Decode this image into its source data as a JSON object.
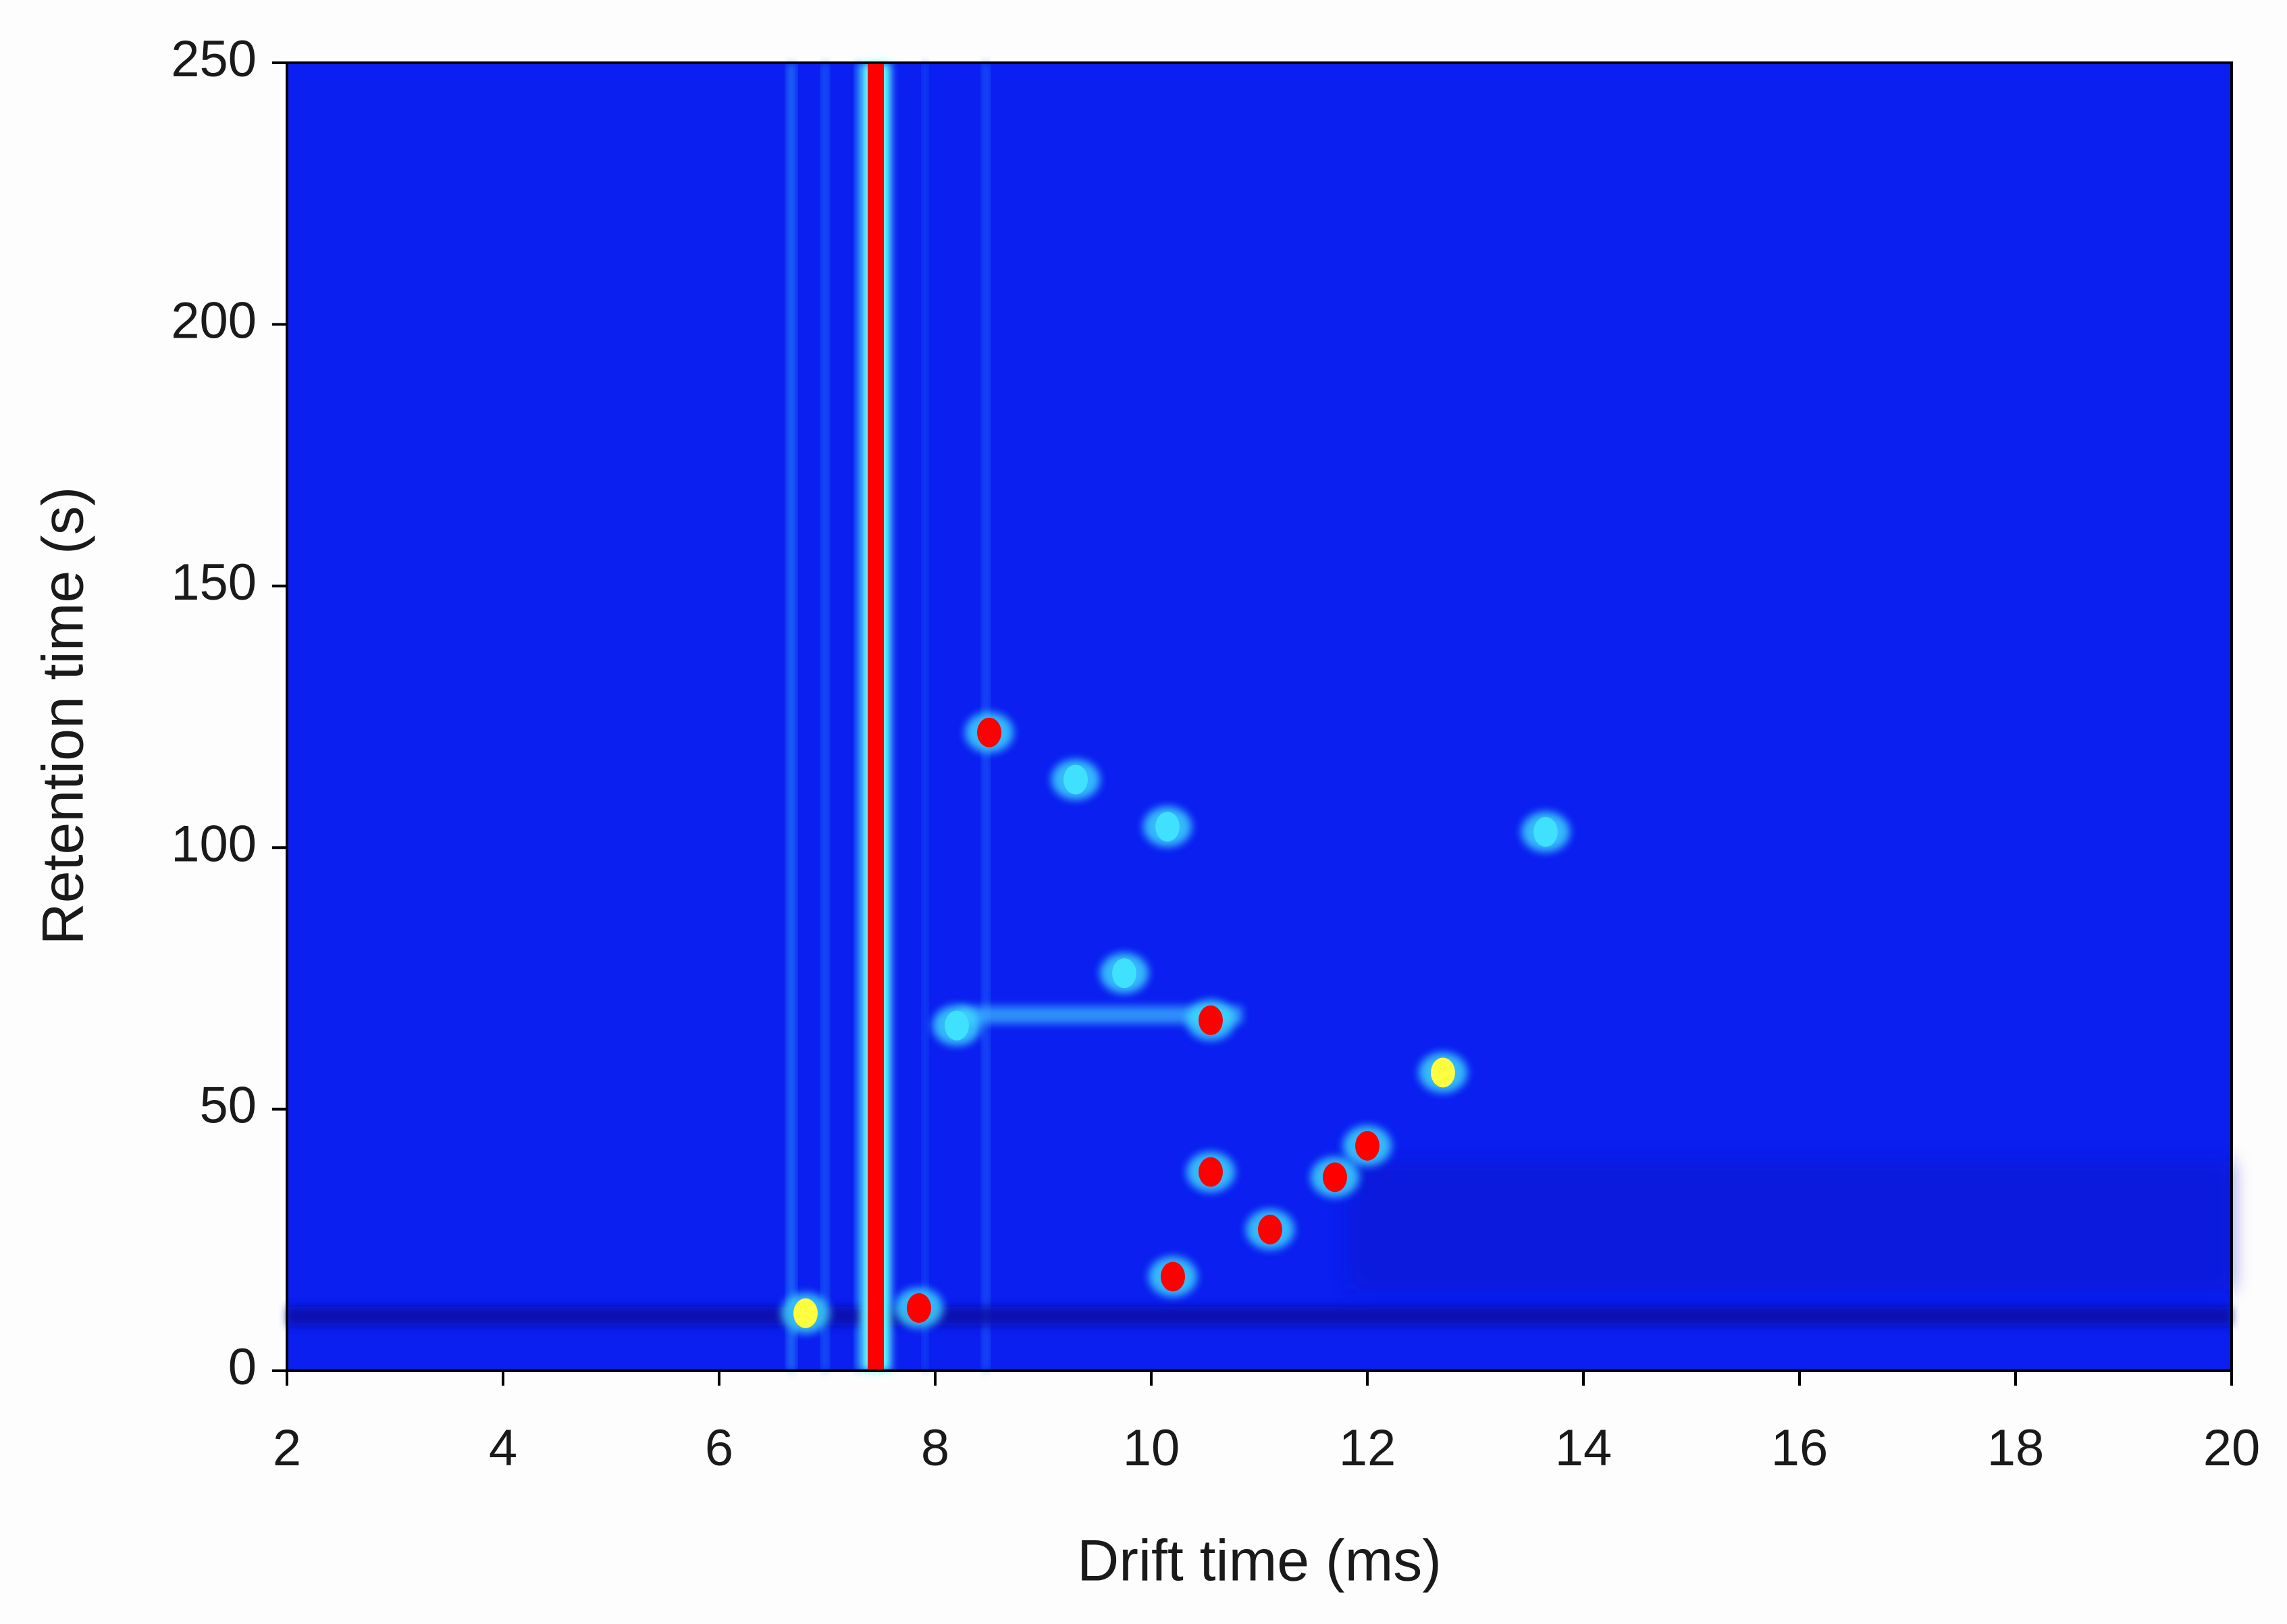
{
  "chart_data": {
    "type": "heatmap",
    "x_label": "Drift time (ms)",
    "y_label": "Retention time (s)",
    "xlim": [
      2,
      20
    ],
    "xticks": [
      2,
      4,
      6,
      8,
      10,
      12,
      14,
      16,
      18,
      20
    ],
    "ylim": [
      0,
      250
    ],
    "yticks": [
      0,
      50,
      100,
      150,
      200,
      250
    ],
    "background_color": "#0a1ff0",
    "rip_drift_time": 7.45,
    "rip_color": "#ff0000",
    "x": [
      8.5,
      10.55,
      11.1,
      12.0,
      10.2,
      11.7,
      10.55,
      12.7,
      9.3,
      10.15,
      13.65,
      9.75,
      8.2,
      6.8,
      7.85
    ],
    "y": [
      122,
      67,
      27,
      43,
      18,
      37,
      38,
      57,
      113,
      104,
      103,
      76,
      66,
      11,
      12
    ],
    "colors": [
      "#ff0000",
      "#ff0000",
      "#ff0000",
      "#ff0000",
      "#ff0000",
      "#ff0000",
      "#ff0000",
      "#ffff40",
      "#40e0ff",
      "#40e0ff",
      "#40e0ff",
      "#40e0ff",
      "#40e0ff",
      "#ffff40",
      "#ff0000"
    ]
  }
}
